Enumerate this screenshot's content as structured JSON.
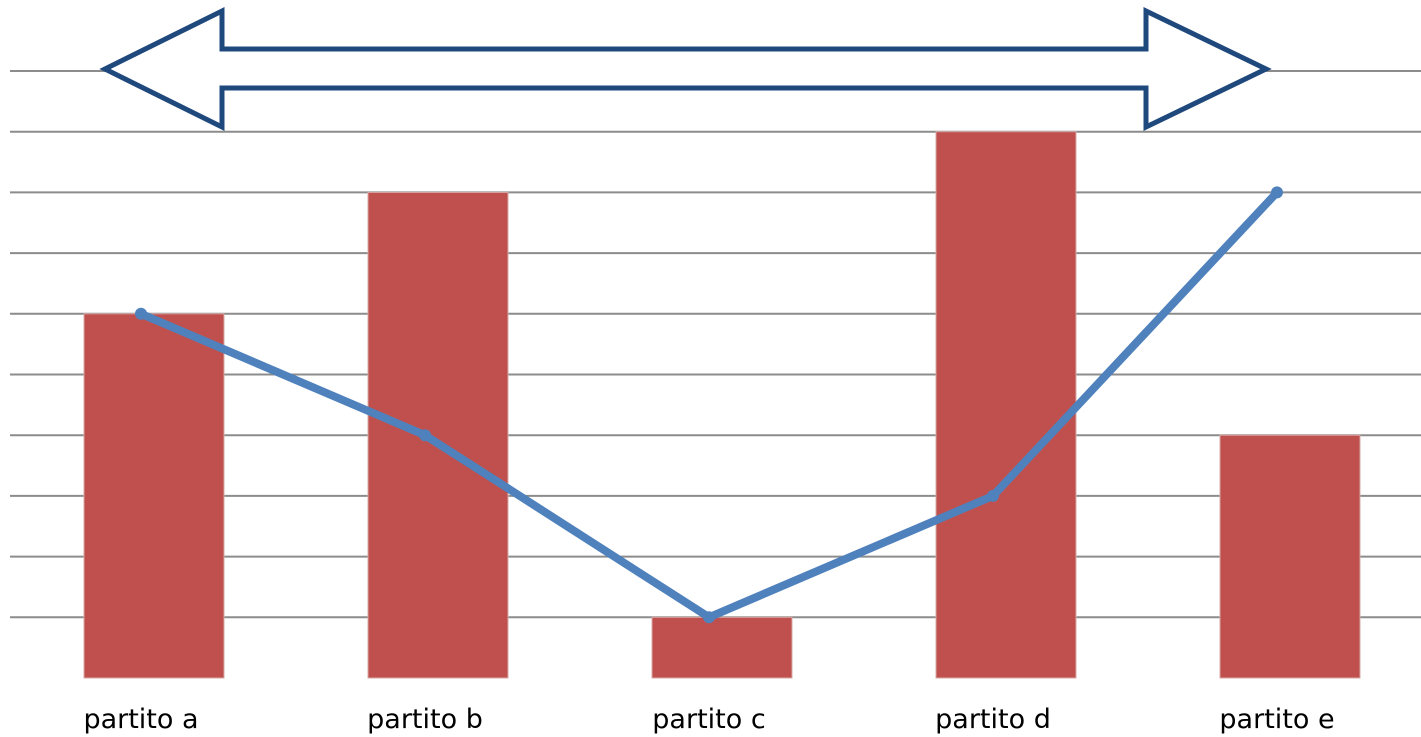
{
  "chart_data": {
    "type": "bar",
    "categories": [
      "partito a",
      "partito b",
      "partito c",
      "partito d",
      "partito e"
    ],
    "series": [
      {
        "type": "bar",
        "values": [
          6,
          8,
          1,
          9,
          4
        ],
        "color": "#c0504d"
      },
      {
        "type": "line",
        "values": [
          6,
          4,
          1,
          3,
          8
        ],
        "color": "#4f81bd"
      }
    ],
    "ylim": [
      0,
      11
    ],
    "grid": true,
    "decoration": {
      "double_arrow": {
        "fill": "#ffffff",
        "stroke": "#1f497d"
      }
    }
  }
}
